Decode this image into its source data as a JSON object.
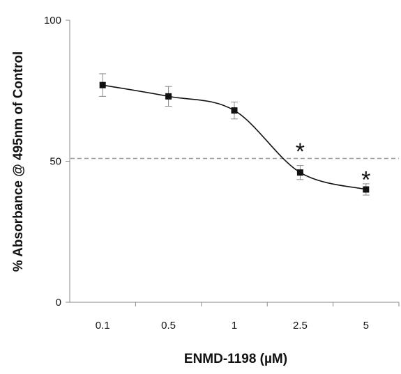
{
  "chart_data": {
    "type": "line",
    "xlabel": "ENMD-1198 (µM)",
    "ylabel": "% Absorbance @ 495nm of Control",
    "categories": [
      "0.1",
      "0.5",
      "1",
      "2.5",
      "5"
    ],
    "ylim": [
      0,
      100
    ],
    "yticks": [
      "0",
      "50",
      "100"
    ],
    "series": [
      {
        "values": [
          77,
          73,
          68,
          46,
          40
        ],
        "errors": [
          4,
          3.5,
          3,
          2.5,
          2
        ]
      }
    ],
    "reference_line": {
      "value": 51,
      "style": "dashed"
    },
    "annotations": [
      {
        "text": "*",
        "category": "2.5",
        "y": 56
      },
      {
        "text": "*",
        "category": "5",
        "y": 46
      }
    ],
    "grid": false,
    "legend": "none",
    "colors": {
      "series": "#111111",
      "reference_line": "#999999",
      "axis": "#888888",
      "error_bar": "#888888"
    }
  }
}
